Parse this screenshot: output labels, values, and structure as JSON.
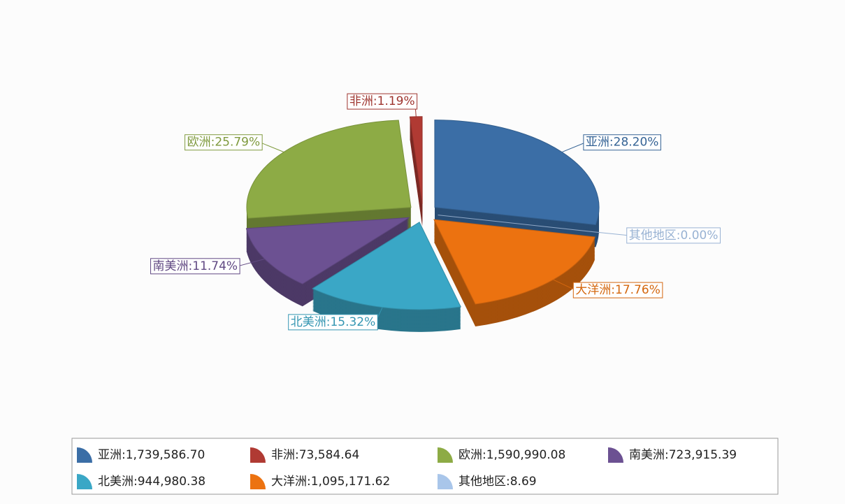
{
  "chart_data": {
    "type": "pie3d",
    "categories": [
      "亚洲",
      "非洲",
      "欧洲",
      "南美洲",
      "北美洲",
      "大洋洲",
      "其他地区"
    ],
    "values": [
      1739586.7,
      73584.64,
      1590990.08,
      723915.39,
      944980.38,
      1095171.62,
      8.69
    ],
    "value_labels": [
      "1,739,586.70",
      "73,584.64",
      "1,590,990.08",
      "723,915.39",
      "944,980.38",
      "1,095,171.62",
      "8.69"
    ],
    "percents": [
      28.2,
      1.19,
      25.79,
      11.74,
      15.32,
      17.76,
      0.0
    ],
    "percent_labels": [
      "28.20%",
      "1.19%",
      "25.79%",
      "11.74%",
      "15.32%",
      "17.76%",
      "0.00%"
    ],
    "label_separator": ":",
    "colors": [
      "#3b6ea6",
      "#b03a33",
      "#8dab45",
      "#6c5192",
      "#3aa7c6",
      "#ec7210",
      "#a9c6ea"
    ]
  }
}
